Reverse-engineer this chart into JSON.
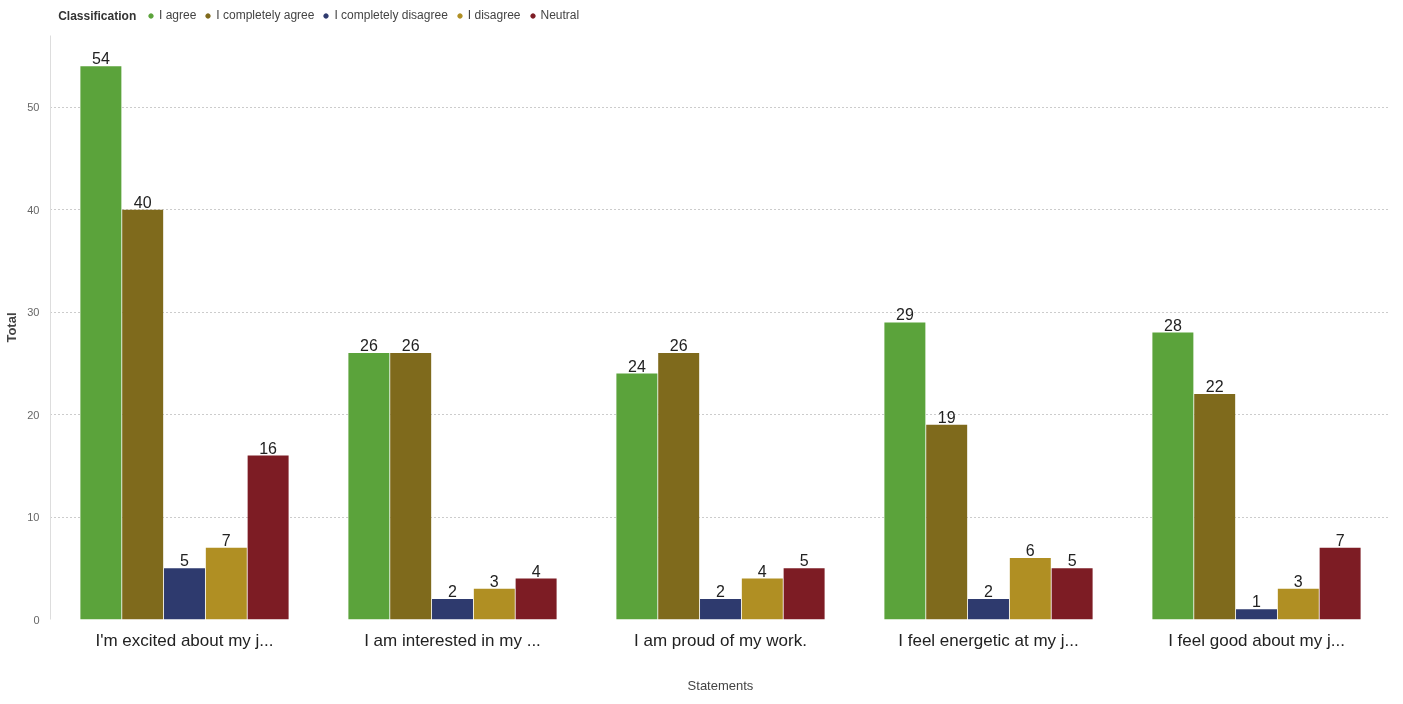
{
  "chart_data": {
    "type": "bar",
    "xlabel": "Statements",
    "ylabel": "Total",
    "legend_title": "Classification",
    "legend": "top left",
    "grid": "y",
    "data_labels": true,
    "categories": [
      "I'm excited about my j...",
      "I am interested in my ...",
      "I am proud of my work.",
      "I feel energetic at my j...",
      "I feel good about my j..."
    ],
    "ylim": [
      0,
      57
    ],
    "yticks": [
      0,
      10,
      20,
      30,
      40,
      50
    ],
    "series": [
      {
        "name": "I agree",
        "color": "#5ba33b",
        "values": [
          54,
          26,
          24,
          29,
          28
        ]
      },
      {
        "name": "I completely agree",
        "color": "#7f6a1c",
        "values": [
          40,
          26,
          26,
          19,
          22
        ]
      },
      {
        "name": "I completely disagree",
        "color": "#2e3a6e",
        "values": [
          5,
          2,
          2,
          2,
          1
        ]
      },
      {
        "name": "I disagree",
        "color": "#b08f23",
        "values": [
          7,
          3,
          4,
          6,
          3
        ]
      },
      {
        "name": "Neutral",
        "color": "#7d1c24",
        "values": [
          16,
          4,
          5,
          5,
          7
        ]
      }
    ]
  }
}
